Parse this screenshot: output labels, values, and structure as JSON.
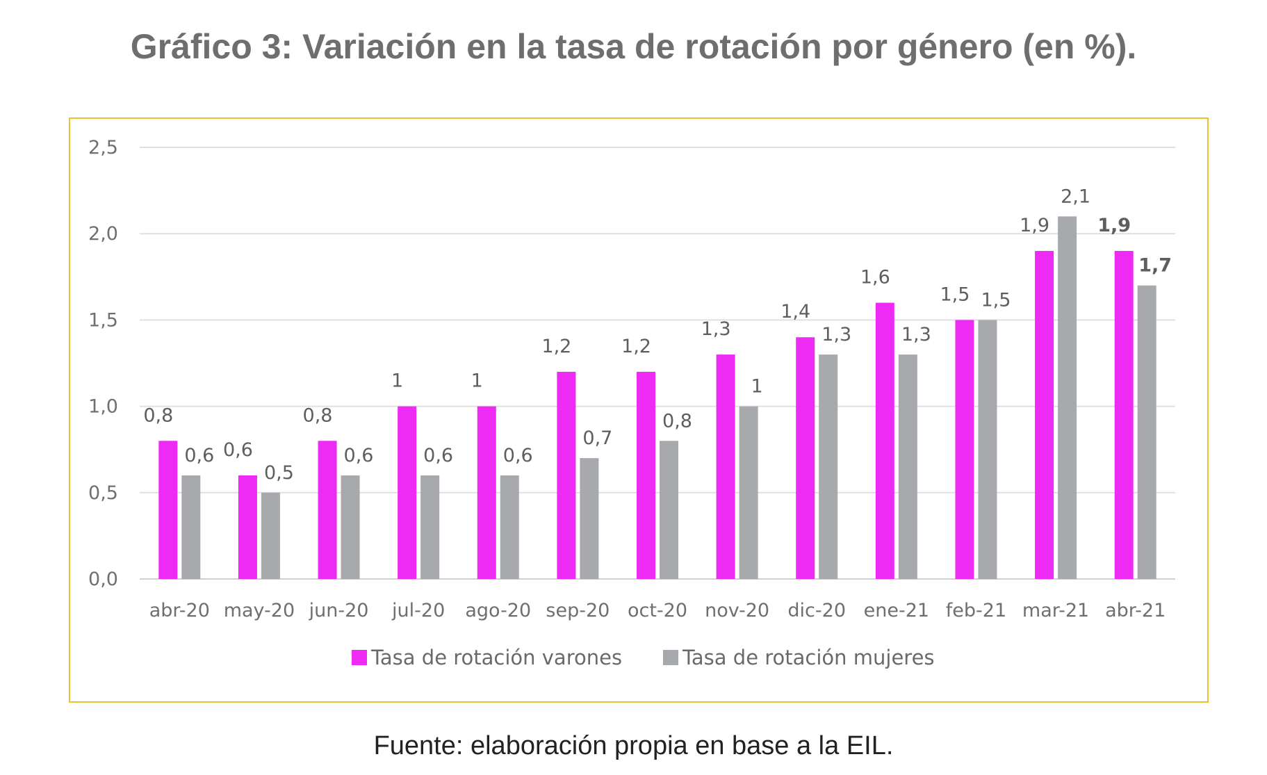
{
  "title": "Gráfico 3:  Variación en la tasa de rotación por género (en %).",
  "source": "Fuente: elaboración propia en base a la EIL.",
  "colors": {
    "varones": "#ee2bf4",
    "mujeres": "#a8a9ad",
    "frame": "#e9c42c"
  },
  "chart_data": {
    "type": "bar",
    "title": "Gráfico 3:  Variación en la tasa de rotación por género (en %).",
    "xlabel": "",
    "ylabel": "",
    "ylim": [
      0,
      2.5
    ],
    "yticks": [
      "0,0",
      "0,5",
      "1,0",
      "1,5",
      "2,0",
      "2,5"
    ],
    "grid": true,
    "legend_position": "bottom",
    "categories": [
      "abr-20",
      "may-20",
      "jun-20",
      "jul-20",
      "ago-20",
      "sep-20",
      "oct-20",
      "nov-20",
      "dic-20",
      "ene-21",
      "feb-21",
      "mar-21",
      "abr-21"
    ],
    "series": [
      {
        "name": "Tasa de rotación varones",
        "color": "#ee2bf4",
        "values": [
          0.8,
          0.6,
          0.8,
          1,
          1,
          1.2,
          1.2,
          1.3,
          1.4,
          1.6,
          1.5,
          1.9,
          1.9
        ],
        "labels": [
          "0,8",
          "0,6",
          "0,8",
          "1",
          "1",
          "1,2",
          "1,2",
          "1,3",
          "1,4",
          "1,6",
          "1,5",
          "1,9",
          "1,9"
        ]
      },
      {
        "name": "Tasa de rotación mujeres",
        "color": "#a8a9ad",
        "values": [
          0.6,
          0.5,
          0.6,
          0.6,
          0.6,
          0.7,
          0.8,
          1,
          1.3,
          1.3,
          1.5,
          2.1,
          1.7
        ],
        "labels": [
          "0,6",
          "0,5",
          "0,6",
          "0,6",
          "0,6",
          "0,7",
          "0,8",
          "1",
          "1,3",
          "1,3",
          "1,5",
          "2,1",
          "1,7"
        ]
      }
    ]
  }
}
